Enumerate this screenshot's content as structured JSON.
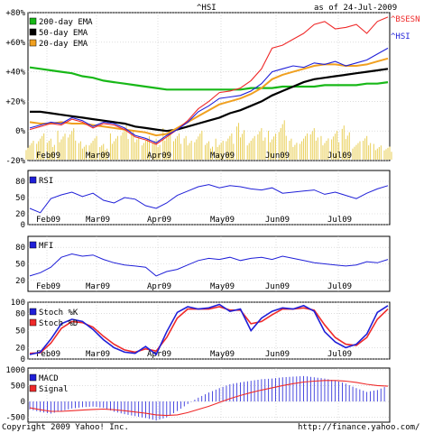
{
  "chart_data": {
    "type": "line",
    "title": "^HSI",
    "date_label": "as of 24-Jul-2009",
    "copyright": "Copyright 2009 Yahoo! Inc.",
    "source_url": "http://finance.yahoo.com/",
    "months": [
      "Feb09",
      "Mar09",
      "Apr09",
      "May09",
      "Jun09",
      "Jul09"
    ],
    "colors": {
      "hsi": "#1f1fd8",
      "bsesn": "#ef2a2a",
      "ema200": "#18b818",
      "ema50": "#000000",
      "ema20": "#f0a020",
      "volume": "#e9cf57",
      "grid": "#c8c8c8",
      "indicator": "#1f1fd8",
      "signal": "#ef2a2a"
    },
    "price_panel": {
      "yticks": [
        "+80%",
        "+60%",
        "+40%",
        "+20%",
        "0%",
        "-20%"
      ],
      "ylim": [
        -20,
        80
      ],
      "series": [
        {
          "name": "^HSI",
          "values": [
            2,
            4,
            6,
            5,
            9,
            7,
            3,
            6,
            5,
            2,
            -3,
            -5,
            -8,
            -3,
            1,
            6,
            13,
            17,
            22,
            23,
            24,
            27,
            32,
            40,
            42,
            44,
            43,
            46,
            45,
            47,
            44,
            46,
            48,
            52,
            56
          ]
        },
        {
          "name": "^BSESN",
          "values": [
            1,
            3,
            5,
            4,
            8,
            6,
            2,
            5,
            4,
            1,
            -4,
            -6,
            -9,
            -4,
            1,
            7,
            15,
            20,
            26,
            27,
            29,
            34,
            42,
            56,
            58,
            62,
            66,
            72,
            74,
            69,
            70,
            72,
            66,
            74,
            77
          ]
        },
        {
          "name": "200-day EMA",
          "values": [
            43,
            42,
            41,
            40,
            39,
            37,
            36,
            34,
            33,
            32,
            31,
            30,
            29,
            28,
            28,
            28,
            28,
            28,
            28,
            28,
            28,
            29,
            29,
            29,
            30,
            30,
            30,
            30,
            31,
            31,
            31,
            31,
            32,
            32,
            33
          ]
        },
        {
          "name": "50-day EMA",
          "values": [
            13,
            13,
            12,
            11,
            10,
            9,
            8,
            7,
            6,
            5,
            3,
            2,
            1,
            0,
            1,
            3,
            5,
            7,
            9,
            12,
            14,
            17,
            20,
            24,
            27,
            30,
            33,
            35,
            36,
            37,
            38,
            39,
            40,
            41,
            42
          ]
        },
        {
          "name": "20-day EMA",
          "values": [
            6,
            5,
            5,
            6,
            5,
            5,
            4,
            3,
            2,
            1,
            0,
            -1,
            -3,
            -2,
            2,
            6,
            10,
            14,
            18,
            20,
            22,
            25,
            29,
            35,
            38,
            40,
            42,
            44,
            45,
            45,
            44,
            44,
            45,
            47,
            49
          ]
        }
      ],
      "volume": [
        9,
        10,
        8,
        11,
        12,
        7,
        9,
        6,
        10,
        13,
        11,
        9,
        8,
        12,
        10,
        9,
        11,
        7,
        8,
        10,
        14,
        9,
        12,
        11,
        15,
        8,
        10,
        12,
        9,
        11,
        13,
        7,
        9,
        6,
        5
      ]
    },
    "rsi_panel": {
      "label": "RSI",
      "yticks": [
        "80",
        "50",
        "20",
        "0"
      ],
      "ylim": [
        0,
        100
      ],
      "values": [
        30,
        22,
        48,
        55,
        60,
        52,
        58,
        45,
        40,
        50,
        47,
        35,
        30,
        40,
        54,
        62,
        70,
        74,
        68,
        72,
        70,
        66,
        64,
        68,
        58,
        60,
        62,
        64,
        56,
        60,
        54,
        48,
        58,
        66,
        72
      ]
    },
    "mfi_panel": {
      "label": "MFI",
      "yticks": [
        "80",
        "50",
        "20"
      ],
      "ylim": [
        0,
        100
      ],
      "values": [
        28,
        34,
        44,
        62,
        68,
        64,
        66,
        58,
        52,
        48,
        46,
        44,
        28,
        36,
        40,
        48,
        56,
        60,
        58,
        62,
        56,
        60,
        62,
        58,
        64,
        60,
        56,
        52,
        50,
        48,
        46,
        48,
        54,
        52,
        58
      ]
    },
    "stoch_panel": {
      "yticks": [
        "100",
        "80",
        "50",
        "20",
        "0"
      ],
      "ylim": [
        0,
        100
      ],
      "series": [
        {
          "name": "Stoch %K",
          "values": [
            8,
            12,
            35,
            62,
            70,
            66,
            52,
            34,
            20,
            12,
            10,
            22,
            8,
            48,
            82,
            92,
            88,
            90,
            96,
            84,
            88,
            50,
            72,
            84,
            90,
            88,
            94,
            84,
            48,
            30,
            20,
            26,
            44,
            82,
            94
          ]
        },
        {
          "name": "Stoch %D",
          "values": [
            10,
            11,
            28,
            54,
            66,
            64,
            56,
            40,
            26,
            16,
            12,
            18,
            14,
            38,
            72,
            88,
            88,
            88,
            92,
            86,
            86,
            62,
            66,
            78,
            88,
            88,
            90,
            86,
            60,
            38,
            26,
            24,
            38,
            70,
            88
          ]
        }
      ]
    },
    "macd_panel": {
      "yticks": [
        "1000",
        "500",
        "0",
        "-500"
      ],
      "ylim": [
        -650,
        1050
      ],
      "series": [
        {
          "name": "MACD",
          "values": [
            -250,
            -330,
            -380,
            -300,
            -220,
            -180,
            -160,
            -200,
            -320,
            -400,
            -460,
            -520,
            -600,
            -500,
            -300,
            -80,
            120,
            280,
            420,
            540,
            600,
            650,
            700,
            720,
            760,
            780,
            800,
            760,
            720,
            660,
            560,
            420,
            300,
            360,
            500
          ]
        },
        {
          "name": "Signal",
          "values": [
            -200,
            -260,
            -310,
            -310,
            -290,
            -270,
            -250,
            -240,
            -260,
            -290,
            -330,
            -370,
            -420,
            -440,
            -420,
            -350,
            -250,
            -150,
            -30,
            90,
            190,
            280,
            360,
            430,
            500,
            560,
            610,
            640,
            660,
            660,
            640,
            600,
            540,
            500,
            480
          ]
        }
      ]
    }
  }
}
